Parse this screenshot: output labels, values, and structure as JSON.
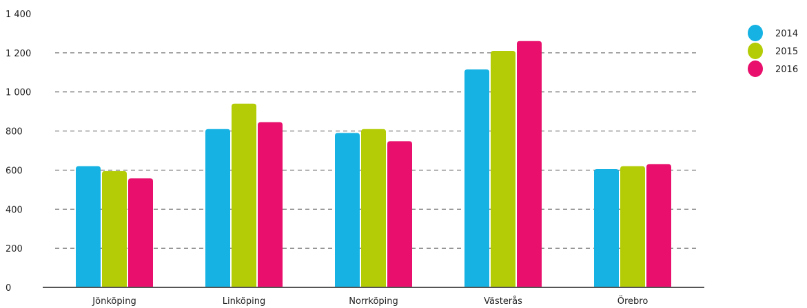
{
  "chart_data": {
    "type": "bar",
    "categories": [
      "Jönköping",
      "Linköping",
      "Norrköping",
      "Västerås",
      "Örebro"
    ],
    "series": [
      {
        "name": "2014",
        "color": "#15b2e3",
        "values": [
          620,
          810,
          790,
          1115,
          605
        ]
      },
      {
        "name": "2015",
        "color": "#b3cc06",
        "values": [
          595,
          940,
          810,
          1210,
          620
        ]
      },
      {
        "name": "2016",
        "color": "#e8106c",
        "values": [
          558,
          845,
          748,
          1260,
          630
        ]
      }
    ],
    "y_ticks": [
      "0",
      "200",
      "400",
      "600",
      "800",
      "1 000",
      "1 200",
      "1 400"
    ],
    "ylim": [
      0,
      1400
    ],
    "grid": true,
    "legend_position": "top-right"
  }
}
